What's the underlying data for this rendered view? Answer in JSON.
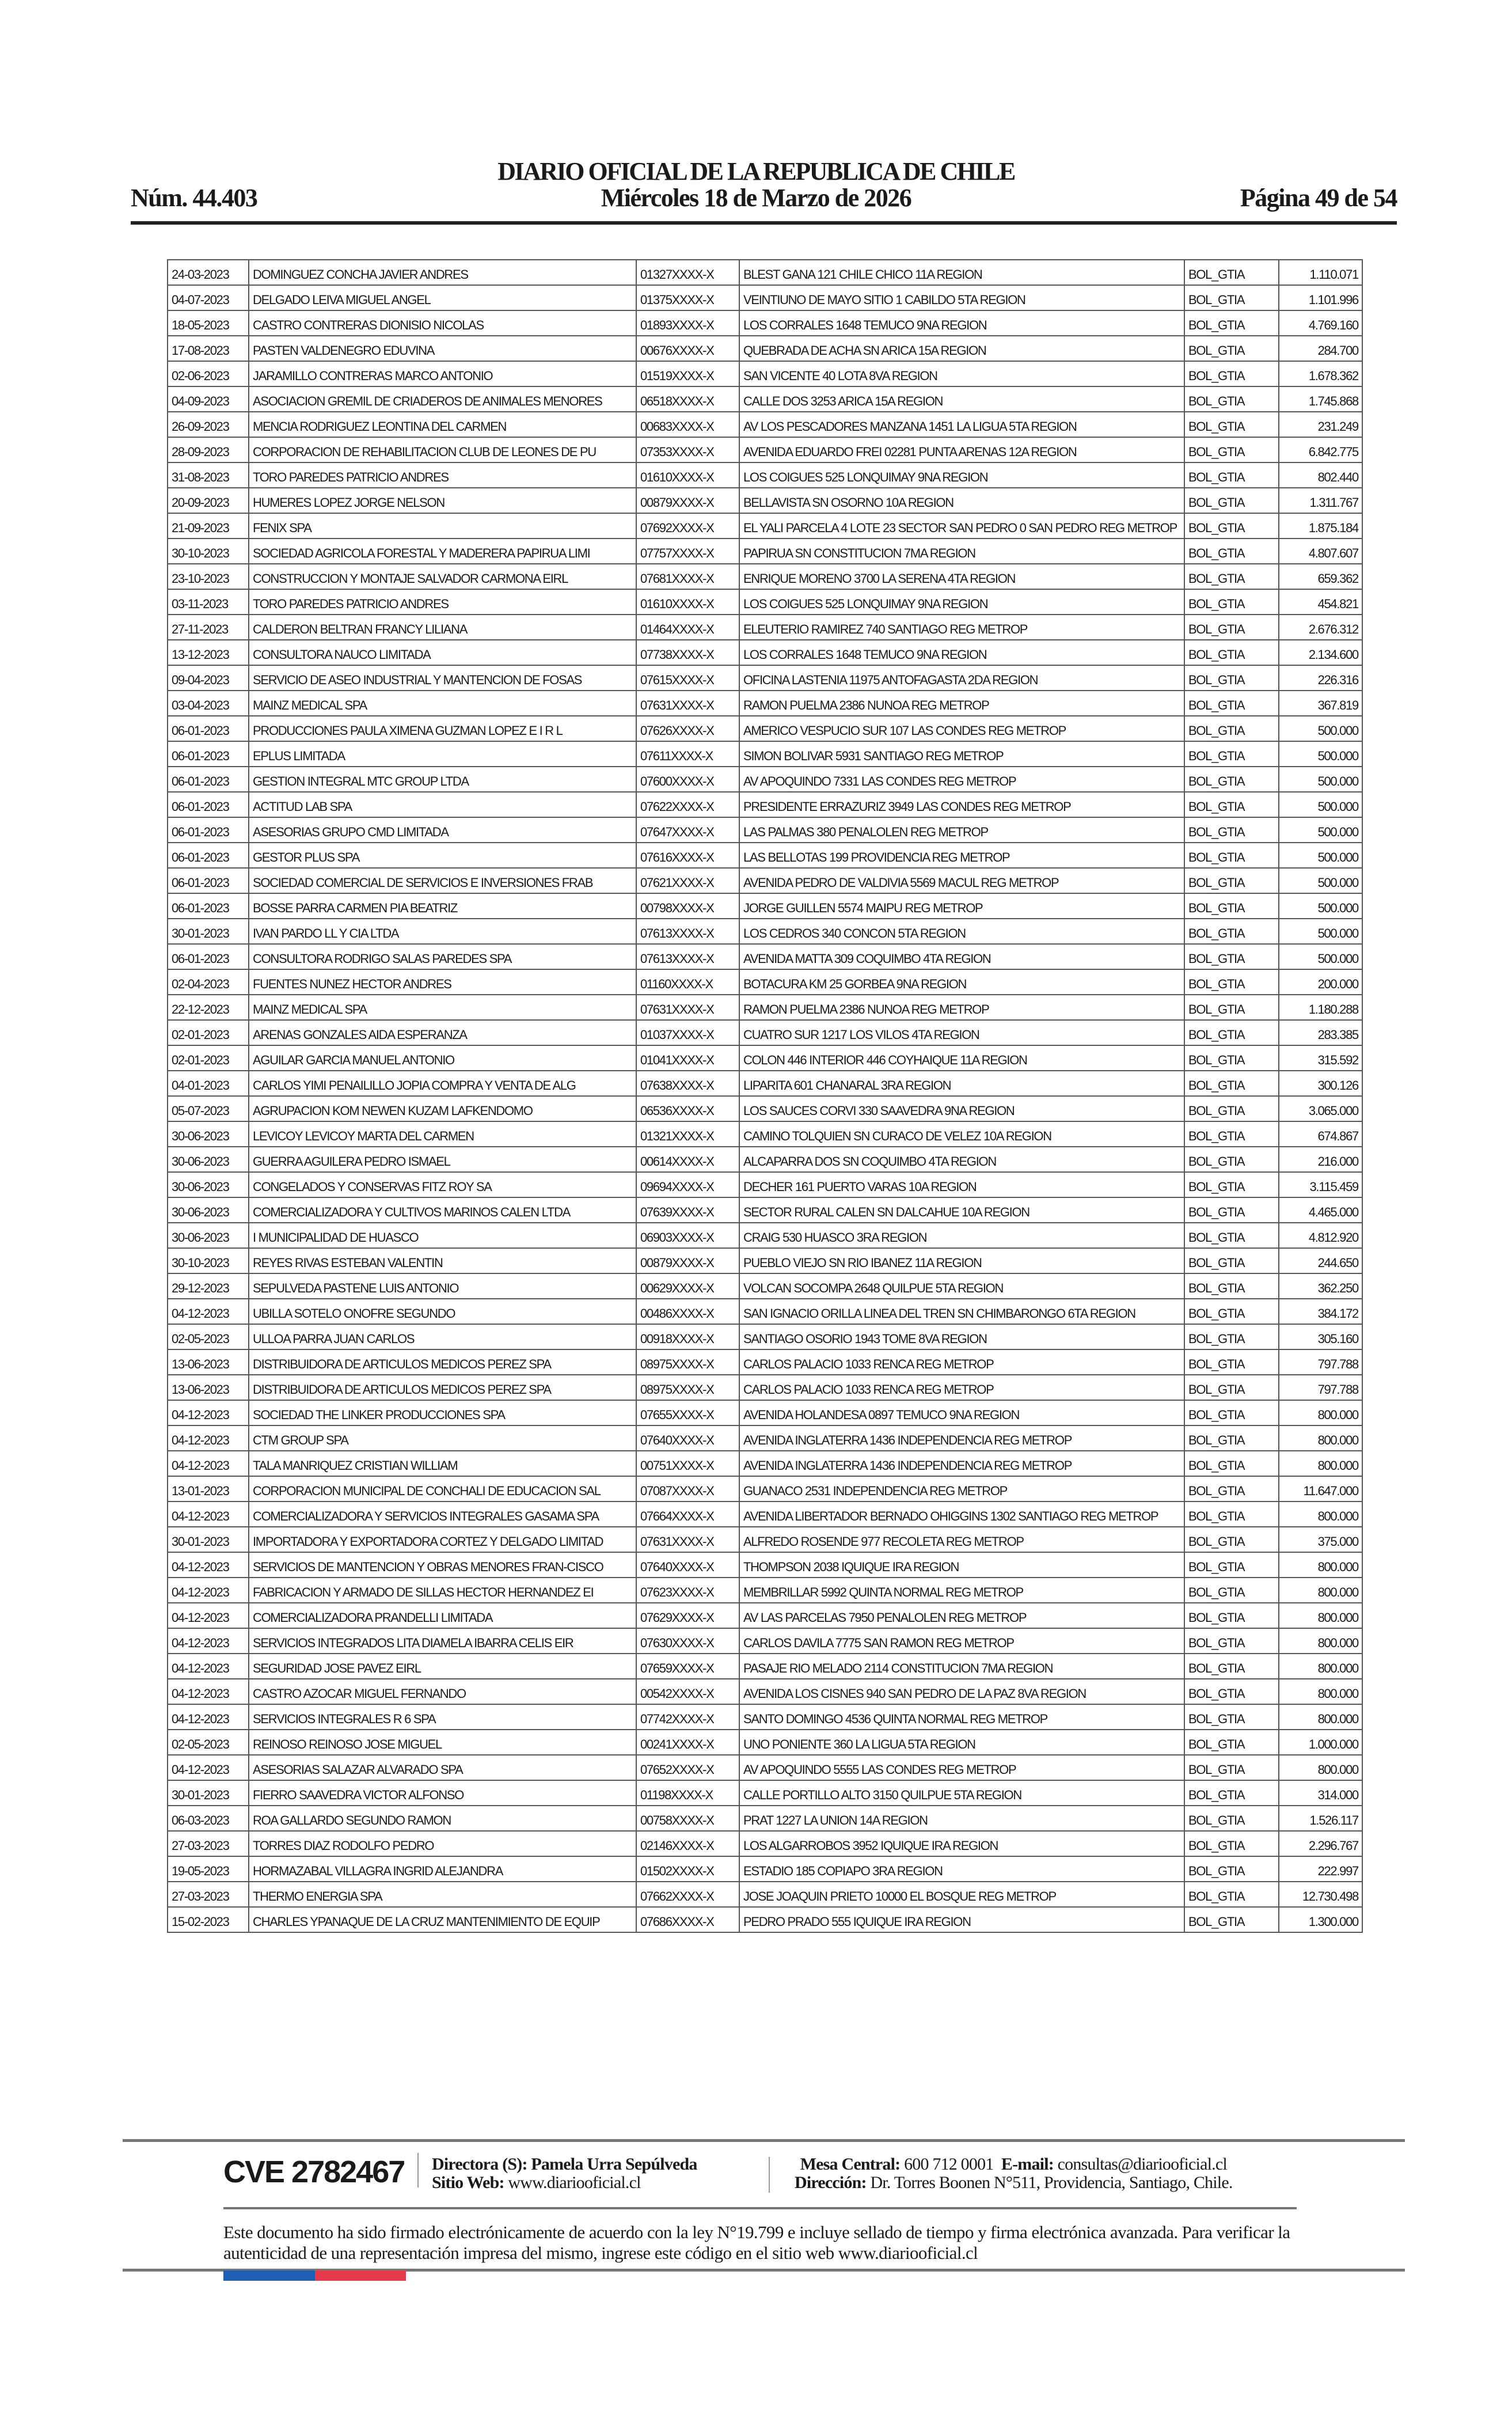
{
  "header": {
    "title": "DIARIO OFICIAL DE LA REPUBLICA DE CHILE",
    "number": "Núm. 44.403",
    "date": "Miércoles 18 de Marzo de 2026",
    "page": "Página 49 de 54"
  },
  "table": {
    "rows": [
      [
        "24-03-2023",
        "DOMINGUEZ CONCHA JAVIER ANDRES",
        "01327XXXX-X",
        "BLEST GANA 121 CHILE CHICO 11A REGION",
        "BOL_GTIA",
        "1.110.071"
      ],
      [
        "04-07-2023",
        "DELGADO LEIVA MIGUEL ANGEL",
        "01375XXXX-X",
        "VEINTIUNO DE MAYO SITIO 1 CABILDO 5TA REGION",
        "BOL_GTIA",
        "1.101.996"
      ],
      [
        "18-05-2023",
        "CASTRO CONTRERAS DIONISIO NICOLAS",
        "01893XXXX-X",
        "LOS CORRALES 1648 TEMUCO 9NA REGION",
        "BOL_GTIA",
        "4.769.160"
      ],
      [
        "17-08-2023",
        "PASTEN VALDENEGRO EDUVINA",
        "00676XXXX-X",
        "QUEBRADA DE ACHA SN ARICA 15A REGION",
        "BOL_GTIA",
        "284.700"
      ],
      [
        "02-06-2023",
        "JARAMILLO CONTRERAS MARCO ANTONIO",
        "01519XXXX-X",
        "SAN VICENTE 40 LOTA 8VA REGION",
        "BOL_GTIA",
        "1.678.362"
      ],
      [
        "04-09-2023",
        "ASOCIACION GREMIL DE CRIADEROS DE ANIMALES MENORES",
        "06518XXXX-X",
        "CALLE DOS 3253 ARICA 15A REGION",
        "BOL_GTIA",
        "1.745.868"
      ],
      [
        "26-09-2023",
        "MENCIA RODRIGUEZ LEONTINA DEL CARMEN",
        "00683XXXX-X",
        "AV LOS PESCADORES MANZANA 1451 LA LIGUA 5TA REGION",
        "BOL_GTIA",
        "231.249"
      ],
      [
        "28-09-2023",
        "CORPORACION DE REHABILITACION CLUB DE LEONES DE PU",
        "07353XXXX-X",
        "AVENIDA EDUARDO FREI 02281 PUNTA ARENAS 12A REGION",
        "BOL_GTIA",
        "6.842.775"
      ],
      [
        "31-08-2023",
        "TORO PAREDES PATRICIO ANDRES",
        "01610XXXX-X",
        "LOS COIGUES 525 LONQUIMAY 9NA REGION",
        "BOL_GTIA",
        "802.440"
      ],
      [
        "20-09-2023",
        "HUMERES LOPEZ JORGE NELSON",
        "00879XXXX-X",
        "BELLAVISTA SN OSORNO 10A REGION",
        "BOL_GTIA",
        "1.311.767"
      ],
      [
        "21-09-2023",
        "FENIX SPA",
        "07692XXXX-X",
        "EL YALI PARCELA 4 LOTE 23 SECTOR SAN PEDRO 0 SAN PEDRO REG METROP",
        "BOL_GTIA",
        "1.875.184"
      ],
      [
        "30-10-2023",
        "SOCIEDAD AGRICOLA FORESTAL Y MADERERA PAPIRUA LIMI",
        "07757XXXX-X",
        "PAPIRUA SN CONSTITUCION 7MA REGION",
        "BOL_GTIA",
        "4.807.607"
      ],
      [
        "23-10-2023",
        "CONSTRUCCION Y MONTAJE SALVADOR CARMONA EIRL",
        "07681XXXX-X",
        "ENRIQUE MORENO 3700 LA SERENA 4TA REGION",
        "BOL_GTIA",
        "659.362"
      ],
      [
        "03-11-2023",
        "TORO PAREDES PATRICIO ANDRES",
        "01610XXXX-X",
        "LOS COIGUES 525 LONQUIMAY 9NA REGION",
        "BOL_GTIA",
        "454.821"
      ],
      [
        "27-11-2023",
        "CALDERON BELTRAN FRANCY LILIANA",
        "01464XXXX-X",
        "ELEUTERIO RAMIREZ 740 SANTIAGO REG METROP",
        "BOL_GTIA",
        "2.676.312"
      ],
      [
        "13-12-2023",
        "CONSULTORA NAUCO LIMITADA",
        "07738XXXX-X",
        "LOS CORRALES 1648 TEMUCO 9NA REGION",
        "BOL_GTIA",
        "2.134.600"
      ],
      [
        "09-04-2023",
        "SERVICIO DE ASEO INDUSTRIAL Y MANTENCION DE FOSAS",
        "07615XXXX-X",
        "OFICINA LASTENIA 11975 ANTOFAGASTA 2DA REGION",
        "BOL_GTIA",
        "226.316"
      ],
      [
        "03-04-2023",
        "MAINZ MEDICAL SPA",
        "07631XXXX-X",
        "RAMON PUELMA 2386 NUNOA REG METROP",
        "BOL_GTIA",
        "367.819"
      ],
      [
        "06-01-2023",
        "PRODUCCIONES PAULA XIMENA GUZMAN LOPEZ E I R L",
        "07626XXXX-X",
        "AMERICO VESPUCIO SUR 107 LAS CONDES REG METROP",
        "BOL_GTIA",
        "500.000"
      ],
      [
        "06-01-2023",
        "EPLUS LIMITADA",
        "07611XXXX-X",
        "SIMON BOLIVAR 5931 SANTIAGO REG METROP",
        "BOL_GTIA",
        "500.000"
      ],
      [
        "06-01-2023",
        "GESTION INTEGRAL MTC GROUP LTDA",
        "07600XXXX-X",
        "AV APOQUINDO 7331 LAS CONDES REG METROP",
        "BOL_GTIA",
        "500.000"
      ],
      [
        "06-01-2023",
        "ACTITUD LAB SPA",
        "07622XXXX-X",
        "PRESIDENTE ERRAZURIZ 3949 LAS CONDES REG METROP",
        "BOL_GTIA",
        "500.000"
      ],
      [
        "06-01-2023",
        "ASESORIAS GRUPO CMD LIMITADA",
        "07647XXXX-X",
        "LAS PALMAS 380 PENALOLEN REG METROP",
        "BOL_GTIA",
        "500.000"
      ],
      [
        "06-01-2023",
        "GESTOR PLUS SPA",
        "07616XXXX-X",
        "LAS BELLOTAS 199 PROVIDENCIA REG METROP",
        "BOL_GTIA",
        "500.000"
      ],
      [
        "06-01-2023",
        "SOCIEDAD COMERCIAL DE SERVICIOS E INVERSIONES FRAB",
        "07621XXXX-X",
        "AVENIDA PEDRO DE VALDIVIA 5569 MACUL REG METROP",
        "BOL_GTIA",
        "500.000"
      ],
      [
        "06-01-2023",
        "BOSSE PARRA CARMEN PIA BEATRIZ",
        "00798XXXX-X",
        "JORGE GUILLEN 5574 MAIPU REG METROP",
        "BOL_GTIA",
        "500.000"
      ],
      [
        "30-01-2023",
        "IVAN PARDO LL  Y CIA  LTDA",
        "07613XXXX-X",
        "LOS CEDROS 340 CONCON 5TA REGION",
        "BOL_GTIA",
        "500.000"
      ],
      [
        "06-01-2023",
        "CONSULTORA RODRIGO SALAS PAREDES SPA",
        "07613XXXX-X",
        "AVENIDA MATTA 309 COQUIMBO 4TA REGION",
        "BOL_GTIA",
        "500.000"
      ],
      [
        "02-04-2023",
        "FUENTES NUNEZ HECTOR ANDRES",
        "01160XXXX-X",
        "BOTACURA KM 25 GORBEA 9NA REGION",
        "BOL_GTIA",
        "200.000"
      ],
      [
        "22-12-2023",
        "MAINZ MEDICAL SPA",
        "07631XXXX-X",
        "RAMON PUELMA 2386 NUNOA REG METROP",
        "BOL_GTIA",
        "1.180.288"
      ],
      [
        "02-01-2023",
        "ARENAS GONZALES AIDA ESPERANZA",
        "01037XXXX-X",
        "CUATRO SUR 1217 LOS VILOS 4TA REGION",
        "BOL_GTIA",
        "283.385"
      ],
      [
        "02-01-2023",
        "AGUILAR GARCIA MANUEL ANTONIO",
        "01041XXXX-X",
        "COLON 446 INTERIOR 446 COYHAIQUE 11A REGION",
        "BOL_GTIA",
        "315.592"
      ],
      [
        "04-01-2023",
        "CARLOS YIMI PENAILILLO JOPIA COMPRA Y VENTA DE ALG",
        "07638XXXX-X",
        "LIPARITA 601 CHANARAL 3RA REGION",
        "BOL_GTIA",
        "300.126"
      ],
      [
        "05-07-2023",
        "AGRUPACION KOM NEWEN KUZAM LAFKENDOMO",
        "06536XXXX-X",
        "LOS SAUCES CORVI 330 SAAVEDRA 9NA REGION",
        "BOL_GTIA",
        "3.065.000"
      ],
      [
        "30-06-2023",
        "LEVICOY LEVICOY MARTA DEL CARMEN",
        "01321XXXX-X",
        "CAMINO TOLQUIEN SN CURACO DE VELEZ 10A REGION",
        "BOL_GTIA",
        "674.867"
      ],
      [
        "30-06-2023",
        "GUERRA AGUILERA PEDRO ISMAEL",
        "00614XXXX-X",
        "ALCAPARRA DOS SN COQUIMBO 4TA REGION",
        "BOL_GTIA",
        "216.000"
      ],
      [
        "30-06-2023",
        "CONGELADOS Y CONSERVAS FITZ ROY SA",
        "09694XXXX-X",
        "DECHER 161 PUERTO VARAS 10A REGION",
        "BOL_GTIA",
        "3.115.459"
      ],
      [
        "30-06-2023",
        "COMERCIALIZADORA Y CULTIVOS MARINOS CALEN LTDA",
        "07639XXXX-X",
        "SECTOR RURAL CALEN SN DALCAHUE 10A REGION",
        "BOL_GTIA",
        "4.465.000"
      ],
      [
        "30-06-2023",
        "I MUNICIPALIDAD DE HUASCO",
        "06903XXXX-X",
        "CRAIG 530 HUASCO 3RA REGION",
        "BOL_GTIA",
        "4.812.920"
      ],
      [
        "30-10-2023",
        "REYES RIVAS ESTEBAN VALENTIN",
        "00879XXXX-X",
        "PUEBLO VIEJO SN RIO IBANEZ 11A REGION",
        "BOL_GTIA",
        "244.650"
      ],
      [
        "29-12-2023",
        "SEPULVEDA PASTENE LUIS ANTONIO",
        "00629XXXX-X",
        "VOLCAN SOCOMPA 2648 QUILPUE 5TA REGION",
        "BOL_GTIA",
        "362.250"
      ],
      [
        "04-12-2023",
        "UBILLA SOTELO ONOFRE SEGUNDO",
        "00486XXXX-X",
        "SAN IGNACIO ORILLA LINEA DEL TREN SN CHIMBARONGO 6TA REGION",
        "BOL_GTIA",
        "384.172"
      ],
      [
        "02-05-2023",
        "ULLOA PARRA JUAN CARLOS",
        "00918XXXX-X",
        "SANTIAGO OSORIO 1943 TOME 8VA REGION",
        "BOL_GTIA",
        "305.160"
      ],
      [
        "13-06-2023",
        "DISTRIBUIDORA DE ARTICULOS MEDICOS PEREZ SPA",
        "08975XXXX-X",
        "CARLOS PALACIO 1033 RENCA REG METROP",
        "BOL_GTIA",
        "797.788"
      ],
      [
        "13-06-2023",
        "DISTRIBUIDORA DE ARTICULOS MEDICOS PEREZ SPA",
        "08975XXXX-X",
        "CARLOS PALACIO 1033 RENCA REG METROP",
        "BOL_GTIA",
        "797.788"
      ],
      [
        "04-12-2023",
        "SOCIEDAD THE LINKER PRODUCCIONES SPA",
        "07655XXXX-X",
        "AVENIDA HOLANDESA 0897 TEMUCO 9NA REGION",
        "BOL_GTIA",
        "800.000"
      ],
      [
        "04-12-2023",
        "CTM GROUP SPA",
        "07640XXXX-X",
        "AVENIDA INGLATERRA 1436 INDEPENDENCIA REG METROP",
        "BOL_GTIA",
        "800.000"
      ],
      [
        "04-12-2023",
        "TALA MANRIQUEZ CRISTIAN WILLIAM",
        "00751XXXX-X",
        "AVENIDA INGLATERRA 1436 INDEPENDENCIA REG METROP",
        "BOL_GTIA",
        "800.000"
      ],
      [
        "13-01-2023",
        "CORPORACION MUNICIPAL DE CONCHALI DE EDUCACION SAL",
        "07087XXXX-X",
        "GUANACO 2531 INDEPENDENCIA REG METROP",
        "BOL_GTIA",
        "11.647.000"
      ],
      [
        "04-12-2023",
        "COMERCIALIZADORA Y SERVICIOS INTEGRALES GASAMA SPA",
        "07664XXXX-X",
        "AVENIDA LIBERTADOR BERNADO OHIGGINS 1302 SANTIAGO REG METROP",
        "BOL_GTIA",
        "800.000"
      ],
      [
        "30-01-2023",
        "IMPORTADORA Y EXPORTADORA CORTEZ Y DELGADO LIMITAD",
        "07631XXXX-X",
        "ALFREDO ROSENDE 977 RECOLETA REG METROP",
        "BOL_GTIA",
        "375.000"
      ],
      [
        "04-12-2023",
        "SERVICIOS DE MANTENCION Y OBRAS MENORES FRAN-CISCO",
        "07640XXXX-X",
        "THOMPSON 2038 IQUIQUE IRA REGION",
        "BOL_GTIA",
        "800.000"
      ],
      [
        "04-12-2023",
        "FABRICACION Y ARMADO DE SILLAS HECTOR HERNANDEZ EI",
        "07623XXXX-X",
        "MEMBRILLAR 5992 QUINTA NORMAL REG METROP",
        "BOL_GTIA",
        "800.000"
      ],
      [
        "04-12-2023",
        "COMERCIALIZADORA PRANDELLI LIMITADA",
        "07629XXXX-X",
        "AV LAS PARCELAS 7950 PENALOLEN REG METROP",
        "BOL_GTIA",
        "800.000"
      ],
      [
        "04-12-2023",
        "SERVICIOS INTEGRADOS LITA DIAMELA IBARRA CELIS EIR",
        "07630XXXX-X",
        "CARLOS DAVILA 7775 SAN RAMON REG METROP",
        "BOL_GTIA",
        "800.000"
      ],
      [
        "04-12-2023",
        "SEGURIDAD JOSE PAVEZ EIRL",
        "07659XXXX-X",
        "PASAJE RIO MELADO 2114 CONSTITUCION 7MA REGION",
        "BOL_GTIA",
        "800.000"
      ],
      [
        "04-12-2023",
        "CASTRO AZOCAR MIGUEL FERNANDO",
        "00542XXXX-X",
        "AVENIDA LOS CISNES 940 SAN PEDRO DE LA PAZ 8VA REGION",
        "BOL_GTIA",
        "800.000"
      ],
      [
        "04-12-2023",
        "SERVICIOS INTEGRALES R 6 SPA",
        "07742XXXX-X",
        "SANTO DOMINGO 4536 QUINTA NORMAL REG METROP",
        "BOL_GTIA",
        "800.000"
      ],
      [
        "02-05-2023",
        "REINOSO REINOSO JOSE MIGUEL",
        "00241XXXX-X",
        "UNO PONIENTE 360 LA LIGUA 5TA REGION",
        "BOL_GTIA",
        "1.000.000"
      ],
      [
        "04-12-2023",
        "ASESORIAS SALAZAR ALVARADO SPA",
        "07652XXXX-X",
        "AV APOQUINDO 5555 LAS CONDES REG METROP",
        "BOL_GTIA",
        "800.000"
      ],
      [
        "30-01-2023",
        "FIERRO SAAVEDRA VICTOR ALFONSO",
        "01198XXXX-X",
        "CALLE PORTILLO ALTO 3150 QUILPUE 5TA REGION",
        "BOL_GTIA",
        "314.000"
      ],
      [
        "06-03-2023",
        "ROA GALLARDO SEGUNDO RAMON",
        "00758XXXX-X",
        "PRAT 1227 LA UNION 14A REGION",
        "BOL_GTIA",
        "1.526.117"
      ],
      [
        "27-03-2023",
        "TORRES DIAZ RODOLFO PEDRO",
        "02146XXXX-X",
        "LOS ALGARROBOS 3952 IQUIQUE IRA REGION",
        "BOL_GTIA",
        "2.296.767"
      ],
      [
        "19-05-2023",
        "HORMAZABAL VILLAGRA INGRID ALEJANDRA",
        "01502XXXX-X",
        "ESTADIO 185 COPIAPO 3RA REGION",
        "BOL_GTIA",
        "222.997"
      ],
      [
        "27-03-2023",
        "THERMO ENERGIA SPA",
        "07662XXXX-X",
        "JOSE JOAQUIN PRIETO 10000 EL BOSQUE REG METROP",
        "BOL_GTIA",
        "12.730.498"
      ],
      [
        "15-02-2023",
        "CHARLES YPANAQUE DE LA CRUZ MANTENIMIENTO DE EQUIP",
        "07686XXXX-X",
        "PEDRO PRADO 555 IQUIQUE IRA REGION",
        "BOL_GTIA",
        "1.300.000"
      ]
    ]
  },
  "footer": {
    "cve": "CVE 2782467",
    "director_label": "Directora (S):",
    "director": "Pamela Urra Sepúlveda",
    "web_label": "Sitio Web:",
    "web": "www.diariooficial.cl",
    "phone_label": "Mesa Central:",
    "phone": "600 712 0001",
    "email_label": "E-mail:",
    "email": "consultas@diariooficial.cl",
    "address_label": "Dirección:",
    "address": "Dr. Torres Boonen N°511, Providencia, Santiago, Chile.",
    "disclaimer": "Este documento ha sido firmado electrónicamente de acuerdo con la ley N°19.799 e incluye sellado de tiempo y firma electrónica avanzada. Para verificar la autenticidad de una representación impresa del mismo, ingrese este código en el sitio web www.diariooficial.cl",
    "flag_colors": [
      "#1f5fb5",
      "#e8394a"
    ]
  }
}
